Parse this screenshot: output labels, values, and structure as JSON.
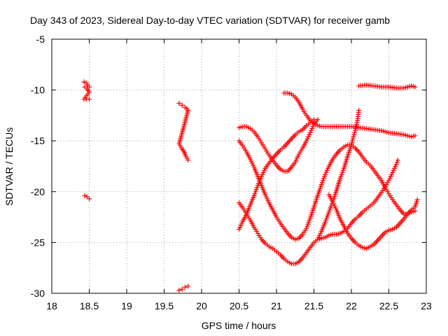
{
  "chart_data": {
    "type": "scatter",
    "title": "Day 343 of 2023, Sidereal Day-to-day VTEC variation (SDTVAR) for receiver gamb",
    "xlabel": "GPS time / hours",
    "ylabel": "SDTVAR / TECUs",
    "xlim": [
      18,
      23
    ],
    "ylim": [
      -30,
      -5
    ],
    "xticks": [
      18,
      18.5,
      19,
      19.5,
      20,
      20.5,
      21,
      21.5,
      22,
      22.5,
      23
    ],
    "xtick_labels": [
      "18",
      "18.5",
      "19",
      "19.5",
      "20",
      "20.5",
      "21",
      "21.5",
      "22",
      "22.5",
      "23"
    ],
    "yticks": [
      -30,
      -25,
      -20,
      -15,
      -10,
      -5
    ],
    "ytick_labels": [
      "-30",
      "-25",
      "-20",
      "-15",
      "-10",
      "-5"
    ],
    "grid": true,
    "marker": "plus",
    "color": "#ff0000",
    "series": [
      {
        "name": "s1",
        "points": [
          [
            18.43,
            -9.2
          ],
          [
            18.46,
            -9.3
          ],
          [
            18.48,
            -9.5
          ],
          [
            18.5,
            -9.7
          ],
          [
            18.44,
            -9.7
          ],
          [
            18.47,
            -9.9
          ],
          [
            18.5,
            -10.2
          ],
          [
            18.43,
            -10.9
          ],
          [
            18.46,
            -10.9
          ],
          [
            18.5,
            -10.9
          ]
        ]
      },
      {
        "name": "s2",
        "points": [
          [
            18.44,
            -20.4
          ],
          [
            18.47,
            -20.5
          ],
          [
            18.5,
            -20.7
          ]
        ]
      },
      {
        "name": "s3",
        "points": [
          [
            19.7,
            -11.3
          ],
          [
            19.74,
            -11.5
          ],
          [
            19.78,
            -11.7
          ],
          [
            19.82,
            -12.0
          ],
          [
            19.7,
            -15.3
          ],
          [
            19.73,
            -15.7
          ],
          [
            19.76,
            -16.0
          ],
          [
            19.79,
            -16.5
          ],
          [
            19.82,
            -16.9
          ]
        ]
      },
      {
        "name": "s4",
        "points": [
          [
            19.7,
            -29.7
          ],
          [
            19.74,
            -29.6
          ],
          [
            19.78,
            -29.4
          ],
          [
            19.82,
            -29.3
          ]
        ]
      },
      {
        "name": "s5",
        "points": [
          [
            20.5,
            -13.7
          ],
          [
            20.55,
            -13.6
          ],
          [
            20.6,
            -13.6
          ],
          [
            20.65,
            -13.8
          ],
          [
            20.7,
            -14.1
          ],
          [
            20.75,
            -14.6
          ],
          [
            20.8,
            -15.2
          ],
          [
            20.85,
            -15.8
          ],
          [
            20.9,
            -16.4
          ],
          [
            20.95,
            -16.9
          ],
          [
            21.0,
            -17.4
          ],
          [
            21.05,
            -17.8
          ],
          [
            21.1,
            -18.0
          ],
          [
            21.15,
            -18.0
          ],
          [
            21.2,
            -17.6
          ],
          [
            21.25,
            -17.1
          ],
          [
            21.3,
            -16.3
          ],
          [
            21.35,
            -15.7
          ],
          [
            21.4,
            -15.0
          ],
          [
            21.45,
            -14.2
          ],
          [
            21.5,
            -13.4
          ],
          [
            21.55,
            -12.9
          ]
        ]
      },
      {
        "name": "s6",
        "points": [
          [
            21.1,
            -10.3
          ],
          [
            21.15,
            -10.3
          ],
          [
            21.2,
            -10.4
          ],
          [
            21.25,
            -10.7
          ],
          [
            21.3,
            -11.2
          ],
          [
            21.35,
            -11.9
          ],
          [
            21.4,
            -12.5
          ],
          [
            21.45,
            -13.0
          ],
          [
            21.5,
            -13.3
          ],
          [
            21.55,
            -13.5
          ],
          [
            21.6,
            -13.6
          ],
          [
            21.7,
            -13.6
          ],
          [
            21.8,
            -13.6
          ],
          [
            21.9,
            -13.6
          ],
          [
            22.0,
            -13.6
          ],
          [
            22.1,
            -13.7
          ],
          [
            22.2,
            -13.8
          ],
          [
            22.3,
            -13.9
          ],
          [
            22.4,
            -14.0
          ],
          [
            22.5,
            -14.2
          ],
          [
            22.6,
            -14.3
          ],
          [
            22.7,
            -14.4
          ],
          [
            22.8,
            -14.6
          ],
          [
            22.85,
            -14.5
          ]
        ]
      },
      {
        "name": "s7",
        "points": [
          [
            22.1,
            -9.6
          ],
          [
            22.2,
            -9.5
          ],
          [
            22.3,
            -9.6
          ],
          [
            22.4,
            -9.7
          ],
          [
            22.5,
            -9.7
          ],
          [
            22.6,
            -9.8
          ],
          [
            22.7,
            -9.8
          ],
          [
            22.8,
            -9.6
          ],
          [
            22.85,
            -9.7
          ]
        ]
      },
      {
        "name": "s8",
        "points": [
          [
            20.5,
            -15.0
          ],
          [
            20.55,
            -15.5
          ],
          [
            20.6,
            -16.1
          ],
          [
            20.65,
            -16.8
          ],
          [
            20.7,
            -17.6
          ],
          [
            20.75,
            -18.5
          ],
          [
            20.8,
            -19.4
          ],
          [
            20.85,
            -20.3
          ],
          [
            20.9,
            -21.1
          ],
          [
            20.95,
            -21.8
          ],
          [
            21.0,
            -22.5
          ],
          [
            21.05,
            -23.1
          ],
          [
            21.1,
            -23.6
          ],
          [
            21.15,
            -24.1
          ],
          [
            21.2,
            -24.5
          ],
          [
            21.25,
            -24.7
          ],
          [
            21.3,
            -24.6
          ],
          [
            21.35,
            -24.2
          ],
          [
            21.4,
            -23.6
          ],
          [
            21.45,
            -22.6
          ],
          [
            21.5,
            -21.5
          ],
          [
            21.55,
            -20.4
          ],
          [
            21.6,
            -19.3
          ],
          [
            21.65,
            -18.3
          ],
          [
            21.7,
            -17.5
          ],
          [
            21.75,
            -16.8
          ],
          [
            21.8,
            -16.3
          ],
          [
            21.85,
            -15.9
          ],
          [
            21.9,
            -15.6
          ],
          [
            21.95,
            -15.4
          ],
          [
            22.0,
            -15.4
          ],
          [
            22.05,
            -15.7
          ],
          [
            22.1,
            -16.1
          ],
          [
            22.15,
            -16.6
          ],
          [
            22.2,
            -17.1
          ],
          [
            22.25,
            -17.4
          ],
          [
            22.3,
            -17.9
          ],
          [
            22.35,
            -18.4
          ],
          [
            22.4,
            -18.9
          ],
          [
            22.45,
            -19.6
          ],
          [
            22.5,
            -20.2
          ],
          [
            22.55,
            -20.8
          ],
          [
            22.6,
            -21.3
          ],
          [
            22.65,
            -21.8
          ],
          [
            22.7,
            -22.2
          ],
          [
            22.75,
            -22.2
          ],
          [
            22.8,
            -22.0
          ],
          [
            22.85,
            -21.9
          ]
        ]
      },
      {
        "name": "s9",
        "points": [
          [
            20.5,
            -21.1
          ],
          [
            20.55,
            -21.6
          ],
          [
            20.6,
            -22.2
          ],
          [
            20.65,
            -22.8
          ],
          [
            20.7,
            -23.5
          ],
          [
            20.75,
            -24.1
          ],
          [
            20.8,
            -24.7
          ],
          [
            20.85,
            -25.1
          ],
          [
            20.9,
            -25.4
          ],
          [
            20.95,
            -25.6
          ],
          [
            21.0,
            -25.9
          ],
          [
            21.05,
            -26.2
          ],
          [
            21.1,
            -26.6
          ],
          [
            21.15,
            -26.9
          ],
          [
            21.2,
            -27.1
          ],
          [
            21.25,
            -27.1
          ],
          [
            21.3,
            -26.9
          ],
          [
            21.35,
            -26.5
          ],
          [
            21.4,
            -26.0
          ],
          [
            21.45,
            -25.5
          ],
          [
            21.5,
            -25.0
          ],
          [
            21.55,
            -24.7
          ],
          [
            21.6,
            -24.6
          ],
          [
            21.65,
            -24.5
          ],
          [
            21.7,
            -24.3
          ],
          [
            21.75,
            -24.2
          ],
          [
            21.8,
            -24.2
          ],
          [
            21.85,
            -24.1
          ],
          [
            21.9,
            -23.9
          ],
          [
            21.95,
            -23.6
          ],
          [
            22.0,
            -23.1
          ],
          [
            22.05,
            -22.7
          ],
          [
            22.1,
            -22.4
          ],
          [
            22.15,
            -22.0
          ],
          [
            22.2,
            -21.7
          ],
          [
            22.25,
            -21.4
          ],
          [
            22.3,
            -21.1
          ],
          [
            22.35,
            -20.6
          ],
          [
            22.4,
            -20.1
          ],
          [
            22.45,
            -19.5
          ],
          [
            22.5,
            -18.9
          ],
          [
            22.55,
            -18.1
          ],
          [
            22.6,
            -17.3
          ],
          [
            22.62,
            -16.9
          ]
        ]
      },
      {
        "name": "s10",
        "points": [
          [
            20.5,
            -23.7
          ],
          [
            20.55,
            -22.9
          ],
          [
            20.6,
            -22.2
          ],
          [
            20.65,
            -21.3
          ],
          [
            20.7,
            -20.4
          ],
          [
            20.75,
            -19.4
          ],
          [
            20.8,
            -18.5
          ],
          [
            20.85,
            -17.7
          ],
          [
            20.9,
            -17.2
          ],
          [
            20.95,
            -16.7
          ],
          [
            21.0,
            -16.3
          ],
          [
            21.05,
            -15.9
          ],
          [
            21.1,
            -15.6
          ],
          [
            21.15,
            -15.2
          ],
          [
            21.2,
            -14.8
          ],
          [
            21.25,
            -14.4
          ],
          [
            21.3,
            -14.1
          ],
          [
            21.35,
            -13.9
          ],
          [
            21.4,
            -13.5
          ],
          [
            21.45,
            -13.2
          ],
          [
            21.5,
            -12.9
          ]
        ]
      },
      {
        "name": "s11",
        "points": [
          [
            21.7,
            -20.3
          ],
          [
            21.75,
            -21.0
          ],
          [
            21.8,
            -21.8
          ],
          [
            21.85,
            -22.7
          ],
          [
            21.9,
            -23.4
          ],
          [
            21.95,
            -24.1
          ],
          [
            22.0,
            -24.6
          ],
          [
            22.05,
            -25.0
          ],
          [
            22.1,
            -25.3
          ],
          [
            22.15,
            -25.5
          ],
          [
            22.2,
            -25.6
          ],
          [
            22.25,
            -25.4
          ],
          [
            22.3,
            -25.2
          ],
          [
            22.35,
            -24.8
          ],
          [
            22.4,
            -24.4
          ],
          [
            22.45,
            -24.0
          ],
          [
            22.5,
            -23.8
          ],
          [
            22.55,
            -23.7
          ],
          [
            22.6,
            -23.5
          ],
          [
            22.65,
            -23.1
          ],
          [
            22.7,
            -22.7
          ],
          [
            22.75,
            -22.2
          ],
          [
            22.8,
            -21.8
          ],
          [
            22.85,
            -21.5
          ],
          [
            22.88,
            -20.8
          ]
        ]
      },
      {
        "name": "s12",
        "points": [
          [
            21.55,
            -24.7
          ],
          [
            21.6,
            -23.9
          ],
          [
            21.65,
            -23.0
          ],
          [
            21.7,
            -22.0
          ],
          [
            21.75,
            -21.0
          ],
          [
            21.8,
            -19.9
          ],
          [
            21.85,
            -18.7
          ],
          [
            21.9,
            -17.7
          ],
          [
            21.95,
            -16.5
          ],
          [
            22.0,
            -15.4
          ],
          [
            22.02,
            -14.8
          ],
          [
            22.05,
            -14.0
          ],
          [
            22.08,
            -13.0
          ],
          [
            22.1,
            -12.0
          ]
        ]
      }
    ]
  }
}
